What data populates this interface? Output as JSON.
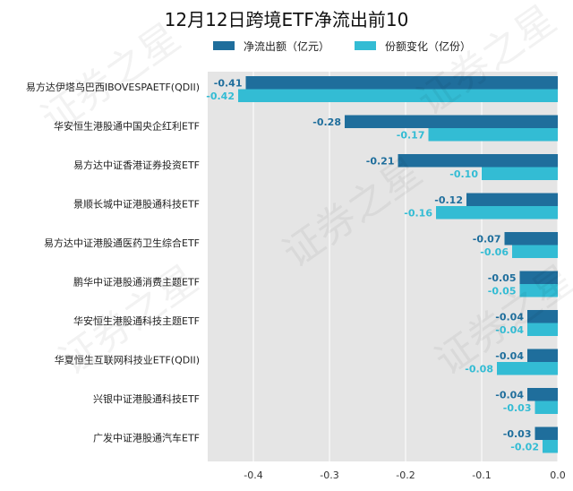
{
  "chart_data": {
    "type": "bar",
    "orientation": "horizontal",
    "title": "12月12日跨境ETF净流出前10",
    "categories": [
      "易方达伊塔乌巴西IBOVESPAETF(QDII)",
      "华安恒生港股通中国央企红利ETF",
      "易方达中证香港证券投资ETF",
      "景顺长城中证港股通科技ETF",
      "易方达中证港股通医药卫生综合ETF",
      "鹏华中证港股通消费主题ETF",
      "华安恒生港股通科技主题ETF",
      "华夏恒生互联网科技业ETF(QDII)",
      "兴银中证港股通科技ETF",
      "广发中证港股通汽车ETF"
    ],
    "series": [
      {
        "name": "净流出额（亿元）",
        "color": "#1f6e9c",
        "values": [
          -0.41,
          -0.28,
          -0.21,
          -0.12,
          -0.07,
          -0.05,
          -0.04,
          -0.04,
          -0.04,
          -0.03
        ],
        "labels": [
          "-0.41",
          "-0.28",
          "-0.21",
          "-0.12",
          "-0.07",
          "-0.05",
          "-0.04",
          "-0.04",
          "-0.04",
          "-0.03"
        ]
      },
      {
        "name": "份额变化（亿份）",
        "color": "#33bcd4",
        "values": [
          -0.42,
          -0.17,
          -0.1,
          -0.16,
          -0.06,
          -0.05,
          -0.04,
          -0.08,
          -0.03,
          -0.02
        ],
        "labels": [
          "-0.42",
          "-0.17",
          "-0.10",
          "-0.16",
          "-0.06",
          "-0.05",
          "-0.04",
          "-0.08",
          "-0.03",
          "-0.02"
        ]
      }
    ],
    "xlim": [
      -0.46,
      0.0
    ],
    "xticks": [
      -0.4,
      -0.3,
      -0.2,
      -0.1,
      0.0
    ],
    "xtick_labels": [
      "-0.4",
      "-0.3",
      "-0.2",
      "-0.1",
      "0.0"
    ],
    "grid": true,
    "legend_position": "top",
    "plot_background": "#e5e5e5"
  },
  "watermark": "证券之星"
}
